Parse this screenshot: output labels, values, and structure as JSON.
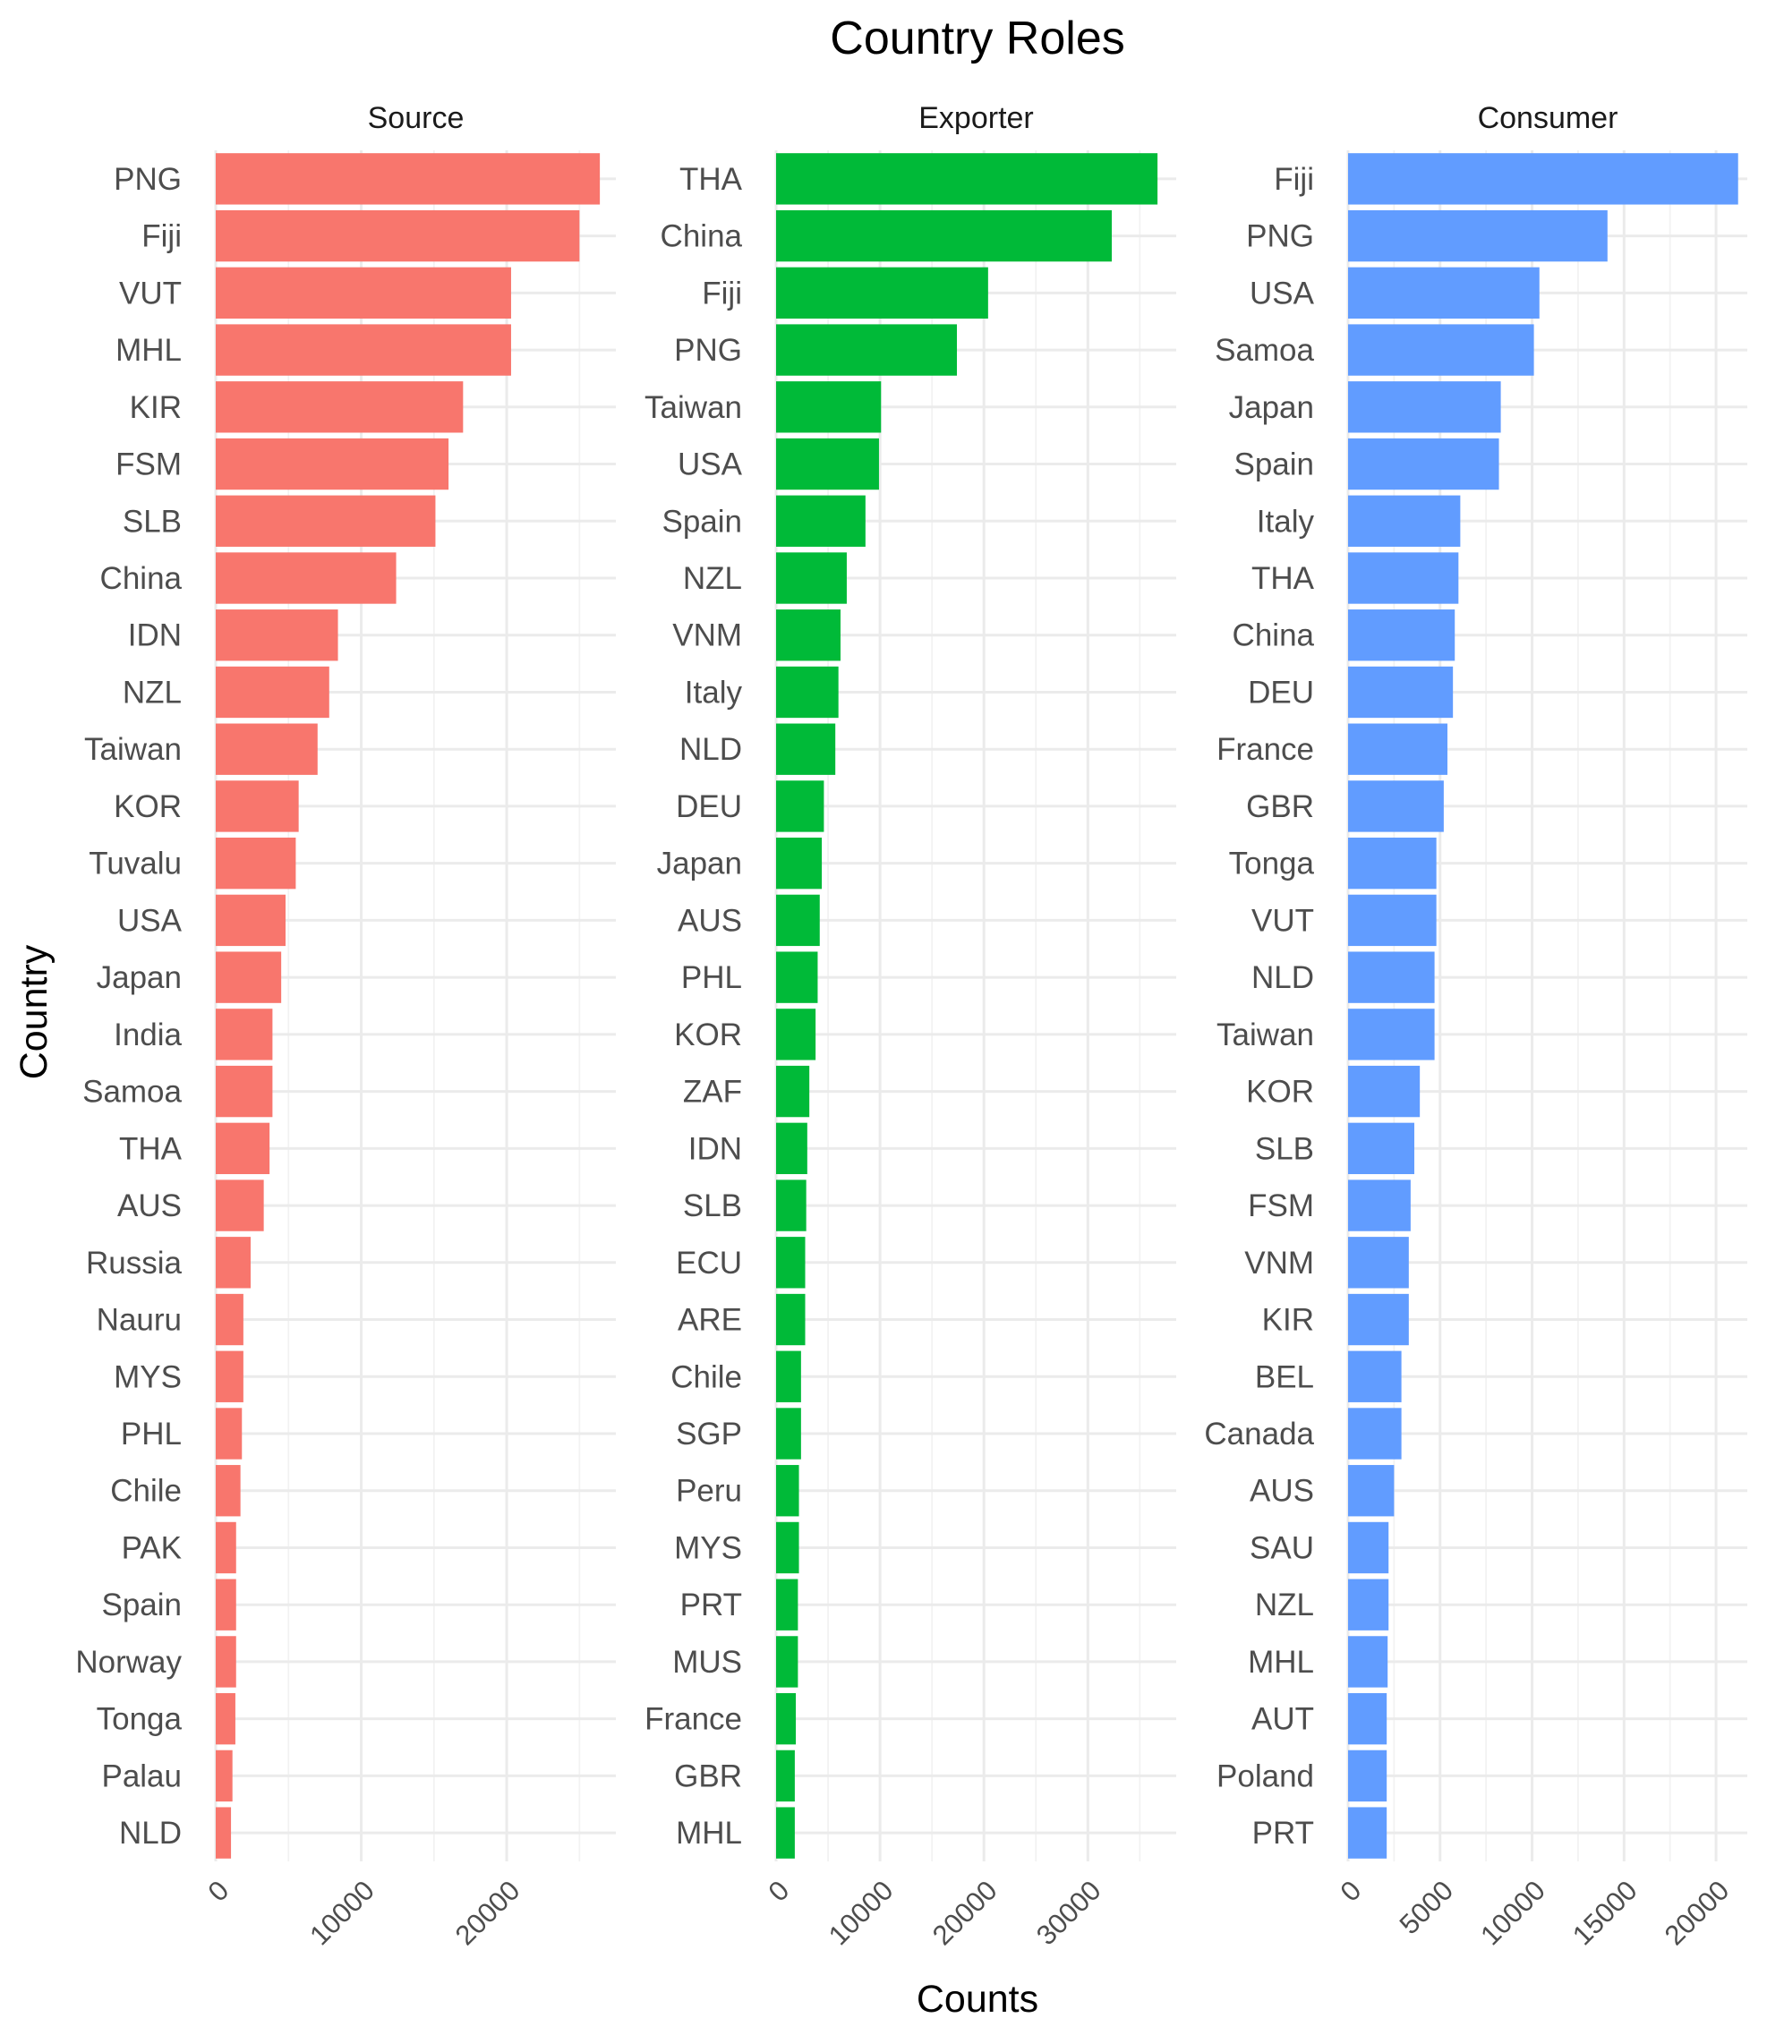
{
  "chart_data": {
    "type": "bar",
    "orientation": "horizontal",
    "title": "Country Roles",
    "xlabel": "Counts",
    "ylabel": "Country",
    "grid": true,
    "panels": [
      {
        "name": "Source",
        "color": "#F8766D",
        "xlim": [
          0,
          27500
        ],
        "xticks": [
          0,
          10000,
          20000
        ],
        "xtick_labels": [
          "0",
          "10000",
          "20000"
        ],
        "categories": [
          "PNG",
          "Fiji",
          "VUT",
          "MHL",
          "KIR",
          "FSM",
          "SLB",
          "China",
          "IDN",
          "NZL",
          "Taiwan",
          "KOR",
          "Tuvalu",
          "USA",
          "Japan",
          "India",
          "Samoa",
          "THA",
          "AUS",
          "Russia",
          "Nauru",
          "MYS",
          "PHL",
          "Chile",
          "PAK",
          "Spain",
          "Norway",
          "Tonga",
          "Palau",
          "NLD"
        ],
        "values": [
          26400,
          25000,
          20300,
          20300,
          17000,
          16000,
          15100,
          12400,
          8400,
          7800,
          7000,
          5700,
          5500,
          4800,
          4500,
          3900,
          3900,
          3700,
          3300,
          2400,
          1900,
          1900,
          1800,
          1700,
          1400,
          1400,
          1400,
          1350,
          1150,
          1050
        ]
      },
      {
        "name": "Exporter",
        "color": "#00BA38",
        "xlim": [
          0,
          38500
        ],
        "xticks": [
          0,
          10000,
          20000,
          30000
        ],
        "xtick_labels": [
          "0",
          "10000",
          "20000",
          "30000"
        ],
        "categories": [
          "THA",
          "China",
          "Fiji",
          "PNG",
          "Taiwan",
          "USA",
          "Spain",
          "NZL",
          "VNM",
          "Italy",
          "NLD",
          "DEU",
          "Japan",
          "AUS",
          "PHL",
          "KOR",
          "ZAF",
          "IDN",
          "SLB",
          "ECU",
          "ARE",
          "Chile",
          "SGP",
          "Peru",
          "MYS",
          "PRT",
          "MUS",
          "France",
          "GBR",
          "MHL"
        ],
        "values": [
          36700,
          32300,
          20400,
          17400,
          10100,
          9900,
          8600,
          6800,
          6200,
          6000,
          5700,
          4600,
          4400,
          4200,
          4000,
          3800,
          3200,
          3000,
          2900,
          2800,
          2800,
          2400,
          2400,
          2200,
          2200,
          2100,
          2100,
          1900,
          1800,
          1800
        ]
      },
      {
        "name": "Consumer",
        "color": "#619CFF",
        "xlim": [
          0,
          21700
        ],
        "xticks": [
          0,
          5000,
          10000,
          15000,
          20000
        ],
        "xtick_labels": [
          "0",
          "5000",
          "10000",
          "15000",
          "20000"
        ],
        "categories": [
          "Fiji",
          "PNG",
          "USA",
          "Samoa",
          "Japan",
          "Spain",
          "Italy",
          "THA",
          "China",
          "DEU",
          "France",
          "GBR",
          "Tonga",
          "VUT",
          "NLD",
          "Taiwan",
          "KOR",
          "SLB",
          "FSM",
          "VNM",
          "KIR",
          "BEL",
          "Canada",
          "AUS",
          "SAU",
          "NZL",
          "MHL",
          "AUT",
          "Poland",
          "PRT"
        ],
        "values": [
          21200,
          14100,
          10400,
          10100,
          8300,
          8200,
          6100,
          6000,
          5800,
          5700,
          5400,
          5200,
          4800,
          4800,
          4700,
          4700,
          3900,
          3600,
          3400,
          3300,
          3300,
          2900,
          2900,
          2500,
          2200,
          2200,
          2150,
          2100,
          2100,
          2100
        ]
      }
    ]
  }
}
